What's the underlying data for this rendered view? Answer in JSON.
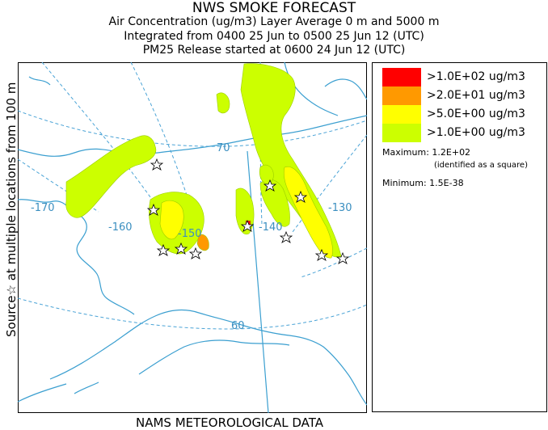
{
  "titles": {
    "line1": "NWS SMOKE FORECAST",
    "line2": "Air Concentration (ug/m3) Layer Average     0 m and  5000 m",
    "line3": "Integrated from 0400 25 Jun to 0500 25 Jun 12 (UTC)",
    "line4": "PM25 Release started at 0600 24 Jun 12 (UTC)"
  },
  "side_label": "Source☆ at multiple locations    from   100 m",
  "footer": "NAMS METEOROLOGICAL DATA",
  "map": {
    "graticule_labels": {
      "lat70": "70",
      "lat60": "60",
      "lon170": "-170",
      "lon160": "-160",
      "lon150": "-150",
      "lon140": "-140",
      "lon130": "-130"
    },
    "colors": {
      "coast": "#3b9fd0",
      "graticule": "#4aa3d6",
      "smoke_low": "#ccff00",
      "smoke_mid": "#ffff00",
      "smoke_high": "#ff9900",
      "smoke_max": "#ff0000"
    }
  },
  "legend": {
    "items": [
      {
        "label": ">1.0E+02 ug/m3",
        "color": "#ff0000"
      },
      {
        "label": ">2.0E+01 ug/m3",
        "color": "#ff9900"
      },
      {
        "label": ">5.0E+00 ug/m3",
        "color": "#ffff00"
      },
      {
        "label": ">1.0E+00 ug/m3",
        "color": "#ccff00"
      }
    ],
    "maximum": "Maximum: 1.2E+02",
    "max_note": "(identified as a square)",
    "minimum": "Minimum: 1.5E-38"
  }
}
